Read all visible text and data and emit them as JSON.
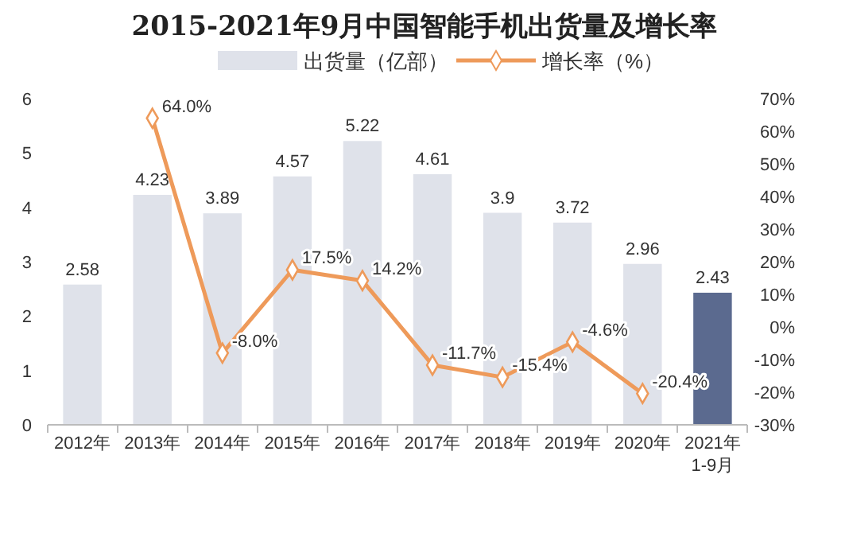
{
  "chart_data": {
    "type": "bar",
    "title": "2015-2021年9月中国智能手机出货量及增长率",
    "categories": [
      "2012年",
      "2013年",
      "2014年",
      "2015年",
      "2016年",
      "2017年",
      "2018年",
      "2019年",
      "2020年",
      "2021年1-9月"
    ],
    "series": [
      {
        "name": "出货量（亿部）",
        "color": "#dfe2ea",
        "colors": [
          "#dfe2ea",
          "#dfe2ea",
          "#dfe2ea",
          "#dfe2ea",
          "#dfe2ea",
          "#dfe2ea",
          "#dfe2ea",
          "#dfe2ea",
          "#dfe2ea",
          "#5b6a8f"
        ],
        "values": [
          2.58,
          4.23,
          3.89,
          4.57,
          5.22,
          4.61,
          3.9,
          3.72,
          2.96,
          2.43
        ]
      },
      {
        "name": "增长率（%）",
        "type": "line",
        "axis": "y2",
        "color": "#ee9a5a",
        "marker": "diamond",
        "values": [
          null,
          64.0,
          -8.0,
          17.5,
          14.2,
          -11.7,
          -15.4,
          -4.6,
          -20.4,
          null
        ],
        "value_labels": [
          null,
          "64.0%",
          "-8.0%",
          "17.5%",
          "14.2%",
          "-11.7%",
          "-15.4%",
          "-4.6%",
          "-20.4%",
          null
        ]
      }
    ],
    "data_labels": true,
    "ylim": [
      0,
      6
    ],
    "yticks": [
      0,
      1,
      2,
      3,
      4,
      5,
      6
    ],
    "y2lim": [
      -30,
      70
    ],
    "y2ticks": [
      {
        "value": -30,
        "label": "-30%"
      },
      {
        "value": -20,
        "label": "-20%"
      },
      {
        "value": -10,
        "label": "-10%"
      },
      {
        "value": 0,
        "label": "0%"
      },
      {
        "value": 10,
        "label": "10%"
      },
      {
        "value": 20,
        "label": "20%"
      },
      {
        "value": 30,
        "label": "30%"
      },
      {
        "value": 40,
        "label": "40%"
      },
      {
        "value": 50,
        "label": "50%"
      },
      {
        "value": 60,
        "label": "60%"
      },
      {
        "value": 70,
        "label": "70%"
      }
    ],
    "legend": "top"
  }
}
